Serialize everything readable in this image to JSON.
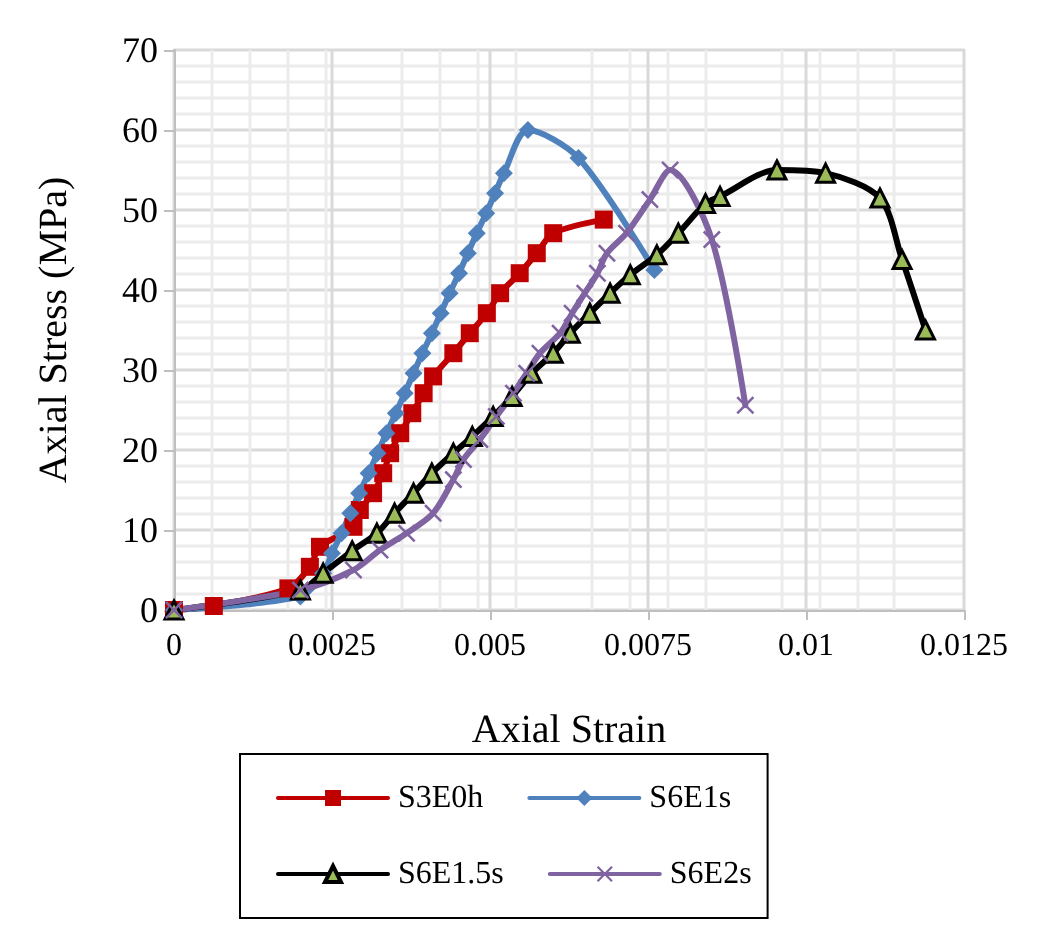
{
  "chart_data": {
    "type": "line",
    "xlabel": "Axial Strain",
    "ylabel": "Axial Stress (MPa)",
    "xlim": [
      0,
      0.0125
    ],
    "xticks": [
      0,
      0.0025,
      0.005,
      0.0075,
      0.01,
      0.0125
    ],
    "ylim": [
      0,
      70
    ],
    "yticks": [
      0,
      10,
      20,
      30,
      40,
      50,
      60,
      70
    ],
    "grid": true,
    "legend": "bottom",
    "series": [
      {
        "name": "S3E0h",
        "color": "#c00000",
        "marker": "square",
        "x": [
          0,
          0.00063,
          0.00181,
          0.00215,
          0.00231,
          0.00284,
          0.00294,
          0.00315,
          0.00331,
          0.00342,
          0.00358,
          0.00377,
          0.00395,
          0.0041,
          0.00442,
          0.00468,
          0.00495,
          0.00516,
          0.00547,
          0.00574,
          0.006,
          0.0068
        ],
        "values": [
          0,
          0.5,
          2.7,
          5.4,
          7.9,
          10.4,
          12.5,
          14.6,
          17.1,
          19.6,
          22.1,
          24.6,
          27.1,
          29.2,
          32.1,
          34.6,
          37.1,
          39.6,
          42.1,
          44.6,
          47.1,
          48.8
        ]
      },
      {
        "name": "S6E1s",
        "color": "#4f81bd",
        "marker": "diamond",
        "x": [
          0,
          0.002,
          0.00236,
          0.0025,
          0.00265,
          0.00279,
          0.00293,
          0.00308,
          0.00322,
          0.00336,
          0.00351,
          0.00365,
          0.00379,
          0.00393,
          0.00408,
          0.00422,
          0.00436,
          0.00451,
          0.00465,
          0.00479,
          0.00494,
          0.00508,
          0.00522,
          0.0056,
          0.0064,
          0.0076
        ],
        "values": [
          0,
          1.7,
          4.6,
          7.1,
          9.6,
          12.1,
          14.6,
          17.1,
          19.6,
          22.1,
          24.6,
          27.1,
          29.6,
          32.1,
          34.6,
          37.1,
          39.6,
          42.1,
          44.6,
          47.1,
          49.6,
          52.1,
          54.6,
          60,
          56.5,
          42.5
        ]
      },
      {
        "name": "S6E1.5s",
        "color": "#000000",
        "marker": "triangle",
        "x": [
          0,
          0.002,
          0.00236,
          0.00282,
          0.00321,
          0.00349,
          0.00379,
          0.00408,
          0.00442,
          0.00472,
          0.00505,
          0.00535,
          0.00566,
          0.006,
          0.00627,
          0.00658,
          0.0069,
          0.00722,
          0.00764,
          0.00798,
          0.00841,
          0.00864,
          0.00954,
          0.01031,
          0.01117,
          0.01152,
          0.01189
        ],
        "values": [
          0,
          2.5,
          4.6,
          7.4,
          9.6,
          12.1,
          14.6,
          17.1,
          19.6,
          21.7,
          24.2,
          26.7,
          29.6,
          32.1,
          34.6,
          37.1,
          39.6,
          41.9,
          44.4,
          47.1,
          50.8,
          51.7,
          55,
          54.6,
          51.5,
          43.8,
          35
        ]
      },
      {
        "name": "S6E2s",
        "color": "#8064a2",
        "marker": "cross",
        "x": [
          0,
          0.002,
          0.00284,
          0.00326,
          0.00368,
          0.0041,
          0.00442,
          0.00458,
          0.00484,
          0.0051,
          0.00537,
          0.00558,
          0.00579,
          0.00611,
          0.0063,
          0.0065,
          0.0067,
          0.00685,
          0.00716,
          0.00753,
          0.00785,
          0.00851,
          0.00904
        ],
        "values": [
          0,
          2.5,
          5,
          7.5,
          9.6,
          12.1,
          16.3,
          18.8,
          21.3,
          24.2,
          27.1,
          29.6,
          32.1,
          34.6,
          37.1,
          39.6,
          42.1,
          44.6,
          47.1,
          51.3,
          55,
          46.3,
          25.6
        ]
      }
    ]
  }
}
